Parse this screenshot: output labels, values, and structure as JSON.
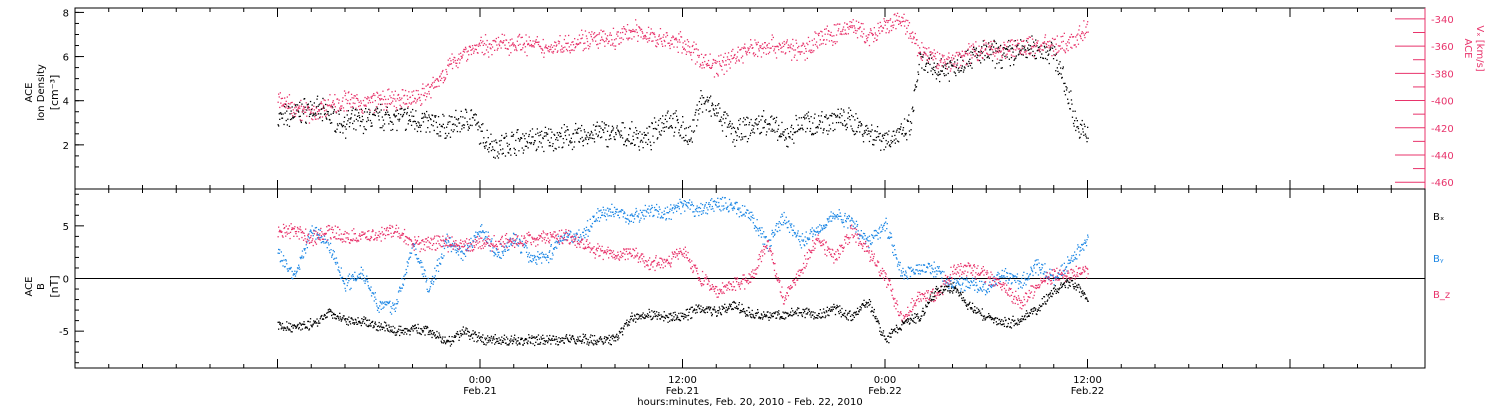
{
  "colors": {
    "black": "#000000",
    "pink": "#e8336b",
    "blue": "#1e88e5"
  },
  "xaxis": {
    "label": "hours:minutes, Feb. 20, 2010 - Feb. 22, 2010",
    "ticks": [
      {
        "time": "0:00",
        "date": "Feb.21",
        "hour": 24
      },
      {
        "time": "12:00",
        "date": "Feb.21",
        "hour": 36
      },
      {
        "time": "0:00",
        "date": "Feb.22",
        "hour": 48
      },
      {
        "time": "12:00",
        "date": "Feb.22",
        "hour": 60
      }
    ]
  },
  "chart_data": [
    {
      "type": "scatter",
      "ylabel_line1": "ACE",
      "ylabel_line2": "Ion Density",
      "ylabel_units": "[cm⁻³]",
      "ylim": [
        0,
        8.2
      ],
      "yticks": [
        "2",
        "4",
        "6",
        "8"
      ],
      "ylabel_right_line1": "ACE",
      "ylabel_right_line2": "Vₓ [km/s]",
      "ylim_right": [
        -465,
        -332
      ],
      "yticks_right": [
        "-340",
        "-360",
        "-380",
        "-400",
        "-420",
        "-440",
        "-460"
      ],
      "series": [
        {
          "color": "black",
          "axis": "left",
          "points": [
            [
              12,
              3.2
            ],
            [
              14,
              3.7
            ],
            [
              16,
              3.0
            ],
            [
              18,
              3.3
            ],
            [
              20,
              3.2
            ],
            [
              22,
              2.8
            ],
            [
              23.5,
              3.3
            ],
            [
              24,
              2.5
            ],
            [
              25,
              1.9
            ],
            [
              26,
              2.2
            ],
            [
              28,
              2.3
            ],
            [
              30,
              2.4
            ],
            [
              31,
              2.6
            ],
            [
              32,
              2.5
            ],
            [
              34,
              2.3
            ],
            [
              35,
              3.3
            ],
            [
              36,
              2.7
            ],
            [
              36.5,
              2.3
            ],
            [
              37,
              4.1
            ],
            [
              38,
              3.5
            ],
            [
              39,
              2.5
            ],
            [
              40,
              2.8
            ],
            [
              41,
              3.1
            ],
            [
              42,
              2.3
            ],
            [
              43,
              3.0
            ],
            [
              44,
              3.0
            ],
            [
              45,
              3.2
            ],
            [
              46,
              3.1
            ],
            [
              47,
              2.6
            ],
            [
              48,
              2.3
            ],
            [
              49,
              2.5
            ],
            [
              49.5,
              2.9
            ],
            [
              50,
              5.8
            ],
            [
              51,
              5.4
            ],
            [
              52,
              5.6
            ],
            [
              53,
              6.0
            ],
            [
              54,
              6.2
            ],
            [
              55,
              6.1
            ],
            [
              56,
              6.3
            ],
            [
              57,
              6.4
            ],
            [
              58,
              6.2
            ],
            [
              59,
              3.8
            ],
            [
              59.5,
              2.6
            ],
            [
              60,
              2.6
            ]
          ]
        },
        {
          "color": "pink",
          "axis": "right",
          "points": [
            [
              12,
              -400
            ],
            [
              13,
              -404
            ],
            [
              14,
              -410
            ],
            [
              15,
              -402
            ],
            [
              16,
              -400
            ],
            [
              17,
              -402
            ],
            [
              18,
              -399
            ],
            [
              19,
              -400
            ],
            [
              20,
              -398
            ],
            [
              21,
              -392
            ],
            [
              22,
              -377
            ],
            [
              23,
              -364
            ],
            [
              24,
              -360
            ],
            [
              26,
              -357
            ],
            [
              28,
              -361
            ],
            [
              30,
              -355
            ],
            [
              32,
              -355
            ],
            [
              33,
              -348
            ],
            [
              35,
              -356
            ],
            [
              36,
              -357
            ],
            [
              37,
              -369
            ],
            [
              38,
              -375
            ],
            [
              39,
              -367
            ],
            [
              40,
              -362
            ],
            [
              41,
              -359
            ],
            [
              42,
              -360
            ],
            [
              43,
              -364
            ],
            [
              44,
              -354
            ],
            [
              45,
              -351
            ],
            [
              46,
              -344
            ],
            [
              47,
              -354
            ],
            [
              48,
              -346
            ],
            [
              49,
              -340
            ],
            [
              50,
              -363
            ],
            [
              51,
              -369
            ],
            [
              52,
              -371
            ],
            [
              53,
              -364
            ],
            [
              54,
              -362
            ],
            [
              55,
              -362
            ],
            [
              56,
              -361
            ],
            [
              57,
              -359
            ],
            [
              58,
              -359
            ],
            [
              59,
              -358
            ],
            [
              60,
              -345
            ]
          ]
        }
      ]
    },
    {
      "type": "scatter",
      "ylabel_line1": "ACE",
      "ylabel_line2": "B",
      "ylabel_units": "[nT]",
      "ylim": [
        -8.5,
        8.5
      ],
      "yticks": [
        "-5",
        "0",
        "5"
      ],
      "series": [
        {
          "name": "Bₓ",
          "color": "black",
          "points": [
            [
              12,
              -4.5
            ],
            [
              13,
              -4.6
            ],
            [
              14,
              -4.3
            ],
            [
              15,
              -3.2
            ],
            [
              16,
              -3.8
            ],
            [
              17,
              -4.0
            ],
            [
              18,
              -4.5
            ],
            [
              19,
              -4.9
            ],
            [
              20,
              -4.7
            ],
            [
              21,
              -5.0
            ],
            [
              22,
              -6.0
            ],
            [
              23,
              -5.0
            ],
            [
              24,
              -5.7
            ],
            [
              26,
              -5.9
            ],
            [
              28,
              -5.8
            ],
            [
              30,
              -5.7
            ],
            [
              31,
              -5.9
            ],
            [
              32,
              -5.7
            ],
            [
              33,
              -3.6
            ],
            [
              34,
              -3.3
            ],
            [
              35,
              -3.7
            ],
            [
              36,
              -3.6
            ],
            [
              37,
              -2.7
            ],
            [
              38,
              -3.1
            ],
            [
              39,
              -2.5
            ],
            [
              40,
              -3.2
            ],
            [
              41,
              -3.5
            ],
            [
              42,
              -3.4
            ],
            [
              43,
              -3.0
            ],
            [
              44,
              -3.6
            ],
            [
              45,
              -2.8
            ],
            [
              46,
              -3.6
            ],
            [
              47,
              -2.1
            ],
            [
              48,
              -5.9
            ],
            [
              49,
              -4.2
            ],
            [
              50,
              -3.7
            ],
            [
              51,
              -1.1
            ],
            [
              52,
              -0.8
            ],
            [
              53,
              -2.6
            ],
            [
              54,
              -3.7
            ],
            [
              55,
              -4.2
            ],
            [
              56,
              -3.9
            ],
            [
              57,
              -2.8
            ],
            [
              58,
              -1.0
            ],
            [
              59,
              -0.3
            ],
            [
              60,
              -1.9
            ]
          ]
        },
        {
          "name": "Bᵧ",
          "color": "blue",
          "points": [
            [
              12,
              2.4
            ],
            [
              13,
              0.3
            ],
            [
              14,
              4.7
            ],
            [
              15,
              3.3
            ],
            [
              16,
              -0.5
            ],
            [
              17,
              0.7
            ],
            [
              18,
              -2.6
            ],
            [
              19,
              -2.5
            ],
            [
              20,
              3.2
            ],
            [
              21,
              -1.0
            ],
            [
              22,
              3.7
            ],
            [
              23,
              2.4
            ],
            [
              24,
              4.8
            ],
            [
              25,
              2.3
            ],
            [
              26,
              3.9
            ],
            [
              27,
              2.0
            ],
            [
              28,
              2.2
            ],
            [
              29,
              4.2
            ],
            [
              30,
              4.0
            ],
            [
              31,
              6.2
            ],
            [
              32,
              6.4
            ],
            [
              33,
              5.8
            ],
            [
              34,
              6.6
            ],
            [
              35,
              6.1
            ],
            [
              36,
              7.0
            ],
            [
              37,
              6.5
            ],
            [
              38,
              7.2
            ],
            [
              39,
              6.9
            ],
            [
              40,
              6.1
            ],
            [
              41,
              3.2
            ],
            [
              42,
              5.9
            ],
            [
              43,
              3.5
            ],
            [
              44,
              4.8
            ],
            [
              45,
              6.1
            ],
            [
              46,
              5.4
            ],
            [
              47,
              3.5
            ],
            [
              48,
              5.3
            ],
            [
              49,
              0.4
            ],
            [
              50,
              1.0
            ],
            [
              51,
              0.9
            ],
            [
              52,
              -0.7
            ],
            [
              53,
              -0.3
            ],
            [
              54,
              -1.0
            ],
            [
              55,
              0.5
            ],
            [
              56,
              -0.4
            ],
            [
              57,
              1.2
            ],
            [
              58,
              0.0
            ],
            [
              59,
              1.8
            ],
            [
              60,
              4.0
            ]
          ]
        },
        {
          "name": "B_z",
          "color": "pink",
          "points": [
            [
              12,
              4.4
            ],
            [
              13,
              4.6
            ],
            [
              14,
              3.8
            ],
            [
              15,
              4.5
            ],
            [
              16,
              4.0
            ],
            [
              17,
              4.0
            ],
            [
              18,
              4.3
            ],
            [
              19,
              4.6
            ],
            [
              20,
              3.3
            ],
            [
              21,
              3.5
            ],
            [
              22,
              3.4
            ],
            [
              23,
              3.2
            ],
            [
              24,
              3.3
            ],
            [
              26,
              3.6
            ],
            [
              28,
              4.0
            ],
            [
              29,
              4.1
            ],
            [
              30,
              3.5
            ],
            [
              31,
              2.6
            ],
            [
              32,
              2.2
            ],
            [
              33,
              2.6
            ],
            [
              34,
              1.5
            ],
            [
              35,
              1.6
            ],
            [
              36,
              2.8
            ],
            [
              37,
              0.2
            ],
            [
              38,
              -1.3
            ],
            [
              39,
              -0.5
            ],
            [
              40,
              0.0
            ],
            [
              41,
              3.6
            ],
            [
              42,
              -2.0
            ],
            [
              43,
              1.0
            ],
            [
              44,
              3.9
            ],
            [
              45,
              2.0
            ],
            [
              46,
              4.6
            ],
            [
              47,
              2.6
            ],
            [
              48,
              0.2
            ],
            [
              49,
              -3.8
            ],
            [
              50,
              -1.5
            ],
            [
              51,
              -1.7
            ],
            [
              52,
              0.8
            ],
            [
              53,
              0.9
            ],
            [
              54,
              0.3
            ],
            [
              55,
              -0.7
            ],
            [
              56,
              -2.4
            ],
            [
              57,
              -0.6
            ],
            [
              58,
              0.4
            ],
            [
              59,
              0.3
            ],
            [
              60,
              1.0
            ]
          ]
        }
      ]
    }
  ]
}
